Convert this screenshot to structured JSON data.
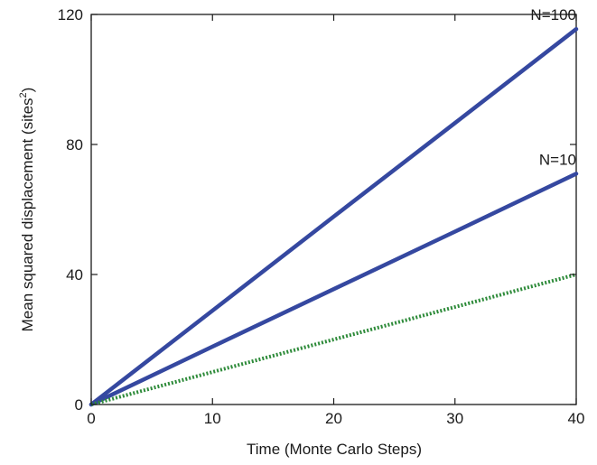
{
  "chart_data": {
    "type": "line",
    "xlabel": "Time (Monte Carlo Steps)",
    "ylabel": "Mean squared displacement (sites",
    "ylabel_sup": "2",
    "ylabel_close": ")",
    "xlim": [
      0,
      40
    ],
    "ylim": [
      0,
      120
    ],
    "xticks": [
      0,
      10,
      20,
      30,
      40
    ],
    "yticks": [
      0,
      40,
      80,
      120
    ],
    "grid": false,
    "series": [
      {
        "name": "N=100",
        "color": "#3548a0",
        "style": "solid",
        "x": [
          0,
          10,
          20,
          30,
          40
        ],
        "y": [
          0,
          28.9,
          57.8,
          86.6,
          115.5
        ]
      },
      {
        "name": "N=10",
        "color": "#3548a0",
        "style": "solid",
        "x": [
          0,
          10,
          20,
          30,
          40
        ],
        "y": [
          0,
          17.8,
          35.5,
          53.2,
          71
        ]
      },
      {
        "color": "#2e8b3a",
        "style": "dotted",
        "x": [
          0,
          10,
          20,
          30,
          40
        ],
        "y": [
          0,
          10,
          20,
          30,
          40
        ]
      }
    ]
  }
}
